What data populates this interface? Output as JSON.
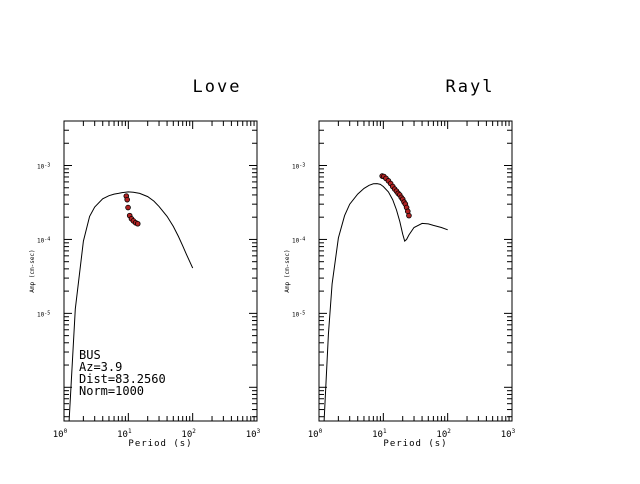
{
  "colors": {
    "background": "#ffffff",
    "axis": "#000000",
    "curve": "#000000",
    "marker_fill": "#b22222",
    "marker_stroke": "#000000"
  },
  "chart_data": [
    {
      "type": "line",
      "title": "Love",
      "xlabel": "Period (s)",
      "ylabel": "Amp (cm-sec)",
      "xscale": "log",
      "yscale": "log",
      "xlim": [
        1,
        1000
      ],
      "ylim": [
        3.5e-07,
        0.004
      ],
      "x_ticks": [
        {
          "value": 1,
          "label": "10",
          "exp": "0"
        },
        {
          "value": 10,
          "label": "10",
          "exp": "1"
        },
        {
          "value": 100,
          "label": "10",
          "exp": "2"
        },
        {
          "value": 1000,
          "label": "10",
          "exp": "3"
        }
      ],
      "y_ticks": [
        {
          "value": 0.001,
          "label": "10",
          "exp": "-3"
        },
        {
          "value": 0.0001,
          "label": "10",
          "exp": "-4"
        },
        {
          "value": 1e-05,
          "label": "10",
          "exp": "-5"
        }
      ],
      "grid": false,
      "series": [
        {
          "kind": "line",
          "x": [
            1.2,
            1.5,
            2.0,
            2.5,
            3.0,
            4.0,
            5.0,
            6.0,
            7.0,
            8.0,
            9.0,
            10.0,
            12.0,
            15.0,
            20.0,
            25.0,
            30.0,
            40.0,
            50.0,
            60.0,
            70.0,
            80.0,
            100.0
          ],
          "y": [
            3.5e-07,
            1.15e-05,
            9.5e-05,
            0.000205,
            0.000275,
            0.000355,
            0.00039,
            0.00041,
            0.00042,
            0.00043,
            0.000435,
            0.00044,
            0.000435,
            0.00042,
            0.00038,
            0.00033,
            0.00028,
            0.000205,
            0.00015,
            0.00011,
            8.2e-05,
            6.3e-05,
            4.1e-05
          ]
        },
        {
          "kind": "markers",
          "x": [
            9.3,
            9.6,
            9.9,
            10.5,
            11.2,
            12.0,
            13.0,
            14.0
          ],
          "y": [
            0.000385,
            0.000345,
            0.00027,
            0.00021,
            0.00019,
            0.000178,
            0.000168,
            0.000163
          ]
        }
      ],
      "annotations": [
        "BUS",
        "Az=3.9",
        "Dist=83.2560",
        "Norm=1000"
      ]
    },
    {
      "type": "line",
      "title": "Rayl",
      "xlabel": "Period (s)",
      "ylabel": "Amp (cm-sec)",
      "xscale": "log",
      "yscale": "log",
      "xlim": [
        1,
        1000
      ],
      "ylim": [
        3.5e-07,
        0.004
      ],
      "x_ticks": [
        {
          "value": 1,
          "label": "10",
          "exp": "0"
        },
        {
          "value": 10,
          "label": "10",
          "exp": "1"
        },
        {
          "value": 100,
          "label": "10",
          "exp": "2"
        },
        {
          "value": 1000,
          "label": "10",
          "exp": "3"
        }
      ],
      "y_ticks": [
        {
          "value": 0.001,
          "label": "10",
          "exp": "-3"
        },
        {
          "value": 0.0001,
          "label": "10",
          "exp": "-4"
        },
        {
          "value": 1e-05,
          "label": "10",
          "exp": "-5"
        }
      ],
      "grid": false,
      "series": [
        {
          "kind": "line",
          "x": [
            1.2,
            1.4,
            1.6,
            2.0,
            2.5,
            3.0,
            4.0,
            5.0,
            6.0,
            7.0,
            8.0,
            9.0,
            10.0,
            12.0,
            14.0,
            16.0,
            18.0,
            20.0,
            21.5,
            23.0,
            25.0,
            30.0,
            40.0,
            50.0,
            60.0,
            80.0,
            100.0
          ],
          "y": [
            3.5e-07,
            5.2e-06,
            2.5e-05,
            0.000105,
            0.00021,
            0.0003,
            0.00041,
            0.00049,
            0.00054,
            0.000565,
            0.00057,
            0.000555,
            0.00052,
            0.00044,
            0.000345,
            0.00025,
            0.000175,
            0.000118,
            9.5e-05,
            0.0001,
            0.000115,
            0.000145,
            0.000165,
            0.000162,
            0.000155,
            0.000145,
            0.000135
          ]
        },
        {
          "kind": "markers",
          "x": [
            9.6,
            10.2,
            11.0,
            12.0,
            13.0,
            14.0,
            15.0,
            16.0,
            17.0,
            18.0,
            19.0,
            20.0,
            21.0,
            22.0,
            23.0,
            24.0,
            25.0
          ],
          "y": [
            0.00072,
            0.00071,
            0.00067,
            0.00062,
            0.00057,
            0.00052,
            0.00048,
            0.00045,
            0.00042,
            0.0004,
            0.00037,
            0.00035,
            0.00032,
            0.0003,
            0.00027,
            0.00024,
            0.00021
          ]
        }
      ],
      "annotations": []
    }
  ]
}
